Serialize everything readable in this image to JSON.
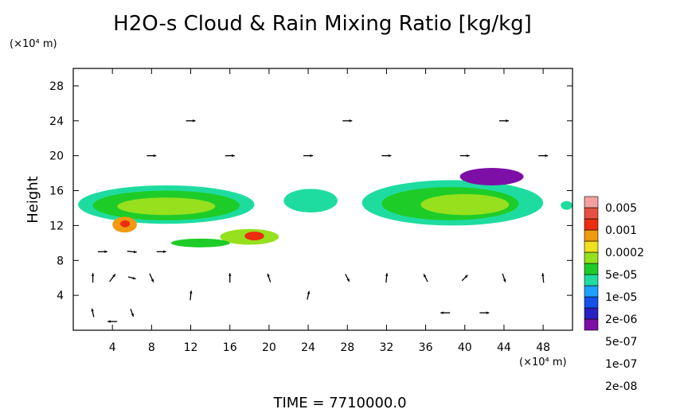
{
  "chart_data": {
    "type": "heatmap",
    "title": "H2O-s Cloud & Rain Mixing Ratio [kg/kg]",
    "ylabel": "Height",
    "x_unit": "(×10⁴ m)",
    "y_unit": "(×10⁴ m)",
    "footer": "TIME = 7710000.0",
    "xlim": [
      0,
      51
    ],
    "ylim": [
      0,
      30
    ],
    "x_ticks": [
      4,
      8,
      12,
      16,
      20,
      24,
      28,
      32,
      36,
      40,
      44,
      48
    ],
    "y_ticks": [
      4,
      8,
      12,
      16,
      20,
      24,
      28
    ],
    "grid": false,
    "overlay": "wind vectors",
    "colorbar": {
      "placement": "right",
      "labels": [
        "0.005",
        "0.001",
        "0.0002",
        "5e-05",
        "1e-05",
        "2e-06",
        "5e-07",
        "1e-07",
        "2e-08"
      ],
      "colors": [
        "#7d0fa6",
        "#2a1fc0",
        "#1450ea",
        "#1ea0ff",
        "#1edca0",
        "#1ecc28",
        "#96e01e",
        "#f0e01e",
        "#f09a10",
        "#ec2d10",
        "#e65040",
        "#f2a0a0"
      ]
    },
    "regions": [
      {
        "x": [
          0.5,
          18.5
        ],
        "y": [
          12.2,
          16.6
        ],
        "level": 4
      },
      {
        "x": [
          2.0,
          17.0
        ],
        "y": [
          12.6,
          16.0
        ],
        "level": 5
      },
      {
        "x": [
          4.5,
          14.5
        ],
        "y": [
          13.2,
          15.2
        ],
        "level": 6
      },
      {
        "x": [
          4.0,
          6.5
        ],
        "y": [
          11.2,
          13.0
        ],
        "level": 8
      },
      {
        "x": [
          4.8,
          5.8
        ],
        "y": [
          11.8,
          12.6
        ],
        "level": 9
      },
      {
        "x": [
          15.0,
          21.0
        ],
        "y": [
          9.8,
          11.6
        ],
        "level": 6
      },
      {
        "x": [
          17.5,
          19.5
        ],
        "y": [
          10.3,
          11.3
        ],
        "level": 9
      },
      {
        "x": [
          10.0,
          16.0
        ],
        "y": [
          9.5,
          10.5
        ],
        "level": 5
      },
      {
        "x": [
          21.5,
          27.0
        ],
        "y": [
          13.5,
          16.2
        ],
        "level": 4
      },
      {
        "x": [
          29.5,
          48.0
        ],
        "y": [
          12.0,
          17.2
        ],
        "level": 4
      },
      {
        "x": [
          31.5,
          45.5
        ],
        "y": [
          12.6,
          16.4
        ],
        "level": 5
      },
      {
        "x": [
          35.5,
          44.5
        ],
        "y": [
          13.2,
          15.6
        ],
        "level": 6
      },
      {
        "x": [
          39.5,
          46.0
        ],
        "y": [
          16.6,
          18.6
        ],
        "level": 0
      },
      {
        "x": [
          49.8,
          51.0
        ],
        "y": [
          13.8,
          14.8
        ],
        "level": 4
      }
    ],
    "vectors": [
      {
        "x": 2,
        "y": 6,
        "u": 0,
        "v": 1
      },
      {
        "x": 4,
        "y": 6,
        "u": 0.6,
        "v": 0.8
      },
      {
        "x": 6,
        "y": 6,
        "u": 0.8,
        "v": -0.2
      },
      {
        "x": 8,
        "y": 6,
        "u": 0.4,
        "v": -0.9
      },
      {
        "x": 2,
        "y": 2,
        "u": -0.2,
        "v": 0.9
      },
      {
        "x": 4,
        "y": 1,
        "u": -1,
        "v": 0
      },
      {
        "x": 6,
        "y": 2,
        "u": 0.3,
        "v": -0.8
      },
      {
        "x": 3,
        "y": 9,
        "u": 1,
        "v": 0
      },
      {
        "x": 6,
        "y": 9,
        "u": 1,
        "v": -0.1
      },
      {
        "x": 9,
        "y": 9,
        "u": 1,
        "v": 0
      },
      {
        "x": 12,
        "y": 4,
        "u": 0.1,
        "v": 1
      },
      {
        "x": 16,
        "y": 6,
        "u": 0,
        "v": 1
      },
      {
        "x": 20,
        "y": 6,
        "u": -0.3,
        "v": 0.9
      },
      {
        "x": 24,
        "y": 4,
        "u": 0.2,
        "v": 0.9
      },
      {
        "x": 28,
        "y": 6,
        "u": 0.4,
        "v": -0.8
      },
      {
        "x": 32,
        "y": 6,
        "u": 0.1,
        "v": 1
      },
      {
        "x": 36,
        "y": 6,
        "u": -0.4,
        "v": 0.8
      },
      {
        "x": 40,
        "y": 6,
        "u": 0.6,
        "v": 0.6
      },
      {
        "x": 44,
        "y": 6,
        "u": 0.3,
        "v": -0.9
      },
      {
        "x": 48,
        "y": 6,
        "u": -0.1,
        "v": 1
      },
      {
        "x": 38,
        "y": 2,
        "u": -1,
        "v": 0
      },
      {
        "x": 42,
        "y": 2,
        "u": 1,
        "v": 0
      },
      {
        "x": 8,
        "y": 20,
        "u": 1,
        "v": 0
      },
      {
        "x": 16,
        "y": 20,
        "u": 1,
        "v": 0
      },
      {
        "x": 24,
        "y": 20,
        "u": 1,
        "v": 0
      },
      {
        "x": 32,
        "y": 20,
        "u": 1,
        "v": 0
      },
      {
        "x": 40,
        "y": 20,
        "u": 1,
        "v": 0
      },
      {
        "x": 48,
        "y": 20,
        "u": 1,
        "v": 0
      },
      {
        "x": 12,
        "y": 24,
        "u": 1,
        "v": 0
      },
      {
        "x": 28,
        "y": 24,
        "u": 1,
        "v": 0
      },
      {
        "x": 44,
        "y": 24,
        "u": 1,
        "v": 0
      }
    ]
  }
}
